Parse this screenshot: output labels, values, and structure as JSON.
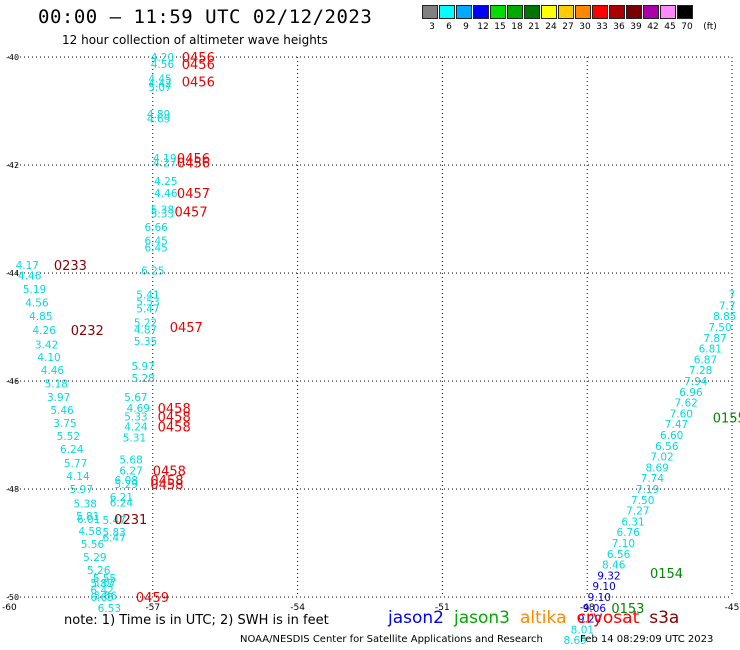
{
  "title": "00:00 – 11:59 UTC 02/12/2023",
  "subtitle": "12 hour collection of altimeter wave heights",
  "legend": {
    "unit": "(ft)",
    "swatches": [
      {
        "label": "3",
        "color": "#808080"
      },
      {
        "label": "6",
        "color": "#00ffff"
      },
      {
        "label": "9",
        "color": "#00aaff"
      },
      {
        "label": "12",
        "color": "#0000ff"
      },
      {
        "label": "15",
        "color": "#00dd00"
      },
      {
        "label": "18",
        "color": "#00aa00"
      },
      {
        "label": "21",
        "color": "#007700"
      },
      {
        "label": "24",
        "color": "#ffff00"
      },
      {
        "label": "27",
        "color": "#ffcc00"
      },
      {
        "label": "30",
        "color": "#ff8800"
      },
      {
        "label": "33",
        "color": "#ff0000"
      },
      {
        "label": "36",
        "color": "#aa0000"
      },
      {
        "label": "39",
        "color": "#770000"
      },
      {
        "label": "42",
        "color": "#aa00aa"
      },
      {
        "label": "45",
        "color": "#ff88ff"
      },
      {
        "label": "70",
        "color": "#000000"
      }
    ]
  },
  "note": "note: 1) Time is in UTC; 2) SWH is in feet",
  "satellites": [
    {
      "name": "jason2",
      "color": "#0000ff"
    },
    {
      "name": "jason3",
      "color": "#00aa00"
    },
    {
      "name": "altika",
      "color": "#ff8800"
    },
    {
      "name": "cryosat",
      "color": "#ff0000"
    },
    {
      "name": "s3a",
      "color": "#880000"
    }
  ],
  "credit": "NOAA/NESDIS Center for Satellite Applications and Research",
  "timestamp": "Feb 14 08:29:09 UTC 2023",
  "chart_data": {
    "type": "scatter",
    "title": "00:00 – 11:59 UTC 02/12/2023",
    "xlabel": "",
    "ylabel": "",
    "xlim": [
      -60,
      -45
    ],
    "ylim": [
      -50,
      -40
    ],
    "x_ticks": [
      "-57",
      "-54",
      "-51",
      "-48",
      "-45"
    ],
    "y_ticks": [
      "-40",
      "-42",
      "-44",
      "-46",
      "-48",
      "-50"
    ],
    "corner_tick": "-60",
    "grid": true,
    "wave_heights": [
      {
        "lon": -56.8,
        "lat": -40.0,
        "v": "4.20",
        "c": "#00dddd"
      },
      {
        "lon": -56.8,
        "lat": -40.13,
        "v": "4.56",
        "c": "#00dddd"
      },
      {
        "lon": -56.85,
        "lat": -40.4,
        "v": "4.45",
        "c": "#00dddd"
      },
      {
        "lon": -56.85,
        "lat": -40.48,
        "v": "4.42",
        "c": "#00dddd"
      },
      {
        "lon": -56.85,
        "lat": -40.56,
        "v": "5.07",
        "c": "#00dddd"
      },
      {
        "lon": -56.88,
        "lat": -41.06,
        "v": "4.89",
        "c": "#00dddd"
      },
      {
        "lon": -56.88,
        "lat": -41.14,
        "v": "4.69",
        "c": "#00dddd"
      },
      {
        "lon": -56.75,
        "lat": -41.87,
        "v": "4.19",
        "c": "#00dddd"
      },
      {
        "lon": -56.75,
        "lat": -41.95,
        "v": "4.27",
        "c": "#00dddd"
      },
      {
        "lon": -56.73,
        "lat": -42.3,
        "v": "4.25",
        "c": "#00dddd"
      },
      {
        "lon": -56.73,
        "lat": -42.52,
        "v": "4.46",
        "c": "#00dddd"
      },
      {
        "lon": -56.8,
        "lat": -42.82,
        "v": "5.38",
        "c": "#00dddd"
      },
      {
        "lon": -56.8,
        "lat": -42.9,
        "v": "5.33",
        "c": "#00dddd"
      },
      {
        "lon": -56.93,
        "lat": -43.15,
        "v": "6.66",
        "c": "#00dddd"
      },
      {
        "lon": -56.93,
        "lat": -43.4,
        "v": "6.45",
        "c": "#00dddd"
      },
      {
        "lon": -56.93,
        "lat": -43.53,
        "v": "6.45",
        "c": "#00dddd"
      },
      {
        "lon": -57.0,
        "lat": -43.95,
        "v": "6.25",
        "c": "#00dddd"
      },
      {
        "lon": -57.1,
        "lat": -44.4,
        "v": "5.41",
        "c": "#00dddd"
      },
      {
        "lon": -57.1,
        "lat": -44.53,
        "v": "5.53",
        "c": "#00dddd"
      },
      {
        "lon": -57.1,
        "lat": -44.66,
        "v": "5.47",
        "c": "#00dddd"
      },
      {
        "lon": -57.15,
        "lat": -44.92,
        "v": "5.22",
        "c": "#00dddd"
      },
      {
        "lon": -57.15,
        "lat": -45.05,
        "v": "4.87",
        "c": "#00dddd"
      },
      {
        "lon": -57.15,
        "lat": -45.26,
        "v": "5.35",
        "c": "#00dddd"
      },
      {
        "lon": -57.2,
        "lat": -45.72,
        "v": "5.97",
        "c": "#00dddd"
      },
      {
        "lon": -57.2,
        "lat": -45.94,
        "v": "5.28",
        "c": "#00dddd"
      },
      {
        "lon": -57.35,
        "lat": -46.3,
        "v": "5.67",
        "c": "#00dddd"
      },
      {
        "lon": -57.3,
        "lat": -46.5,
        "v": "4.69",
        "c": "#00dddd"
      },
      {
        "lon": -57.35,
        "lat": -46.66,
        "v": "5.33",
        "c": "#00dddd"
      },
      {
        "lon": -57.35,
        "lat": -46.84,
        "v": "4.24",
        "c": "#00dddd"
      },
      {
        "lon": -57.38,
        "lat": -47.05,
        "v": "5.31",
        "c": "#00dddd"
      },
      {
        "lon": -57.45,
        "lat": -47.45,
        "v": "5.68",
        "c": "#00dddd"
      },
      {
        "lon": -57.45,
        "lat": -47.66,
        "v": "6.27",
        "c": "#00dddd"
      },
      {
        "lon": -57.55,
        "lat": -47.83,
        "v": "6.08",
        "c": "#00dddd"
      },
      {
        "lon": -57.55,
        "lat": -47.91,
        "v": "5.29",
        "c": "#00dddd"
      },
      {
        "lon": -57.65,
        "lat": -48.15,
        "v": "6.21",
        "c": "#00dddd"
      },
      {
        "lon": -57.65,
        "lat": -48.25,
        "v": "6.24",
        "c": "#00dddd"
      },
      {
        "lon": -57.8,
        "lat": -48.57,
        "v": "5.47",
        "c": "#00dddd"
      },
      {
        "lon": -57.8,
        "lat": -48.8,
        "v": "5.83",
        "c": "#00dddd"
      },
      {
        "lon": -57.8,
        "lat": -48.9,
        "v": "6.47",
        "c": "#00dddd"
      },
      {
        "lon": -58.0,
        "lat": -49.65,
        "v": "5.55",
        "c": "#00dddd"
      },
      {
        "lon": -58.0,
        "lat": -49.73,
        "v": "5.07",
        "c": "#00dddd"
      },
      {
        "lon": -58.05,
        "lat": -49.87,
        "v": "6.42",
        "c": "#00dddd"
      },
      {
        "lon": -58.05,
        "lat": -50.0,
        "v": "6.65",
        "c": "#00dddd"
      },
      {
        "lon": -59.6,
        "lat": -43.85,
        "v": "4.17",
        "c": "#00dddd"
      },
      {
        "lon": -59.55,
        "lat": -44.05,
        "v": "4.46",
        "c": "#00dddd"
      },
      {
        "lon": -59.45,
        "lat": -44.3,
        "v": "5.19",
        "c": "#00dddd"
      },
      {
        "lon": -59.4,
        "lat": -44.55,
        "v": "4.56",
        "c": "#00dddd"
      },
      {
        "lon": -59.32,
        "lat": -44.8,
        "v": "4.85",
        "c": "#00dddd"
      },
      {
        "lon": -59.25,
        "lat": -45.06,
        "v": "4.26",
        "c": "#00dddd"
      },
      {
        "lon": -59.2,
        "lat": -45.32,
        "v": "3.42",
        "c": "#00dddd"
      },
      {
        "lon": -59.15,
        "lat": -45.56,
        "v": "4.10",
        "c": "#00dddd"
      },
      {
        "lon": -59.08,
        "lat": -45.8,
        "v": "4.46",
        "c": "#00dddd"
      },
      {
        "lon": -59.0,
        "lat": -46.05,
        "v": "5.18",
        "c": "#00dddd"
      },
      {
        "lon": -58.95,
        "lat": -46.3,
        "v": "3.97",
        "c": "#00dddd"
      },
      {
        "lon": -58.88,
        "lat": -46.54,
        "v": "5.46",
        "c": "#00dddd"
      },
      {
        "lon": -58.82,
        "lat": -46.78,
        "v": "3.75",
        "c": "#00dddd"
      },
      {
        "lon": -58.75,
        "lat": -47.02,
        "v": "5.52",
        "c": "#00dddd"
      },
      {
        "lon": -58.68,
        "lat": -47.26,
        "v": "6.24",
        "c": "#00dddd"
      },
      {
        "lon": -58.6,
        "lat": -47.52,
        "v": "5.77",
        "c": "#00dddd"
      },
      {
        "lon": -58.55,
        "lat": -47.76,
        "v": "4.14",
        "c": "#00dddd"
      },
      {
        "lon": -58.48,
        "lat": -48.0,
        "v": "5.97",
        "c": "#00dddd"
      },
      {
        "lon": -58.4,
        "lat": -48.27,
        "v": "5.38",
        "c": "#00dddd"
      },
      {
        "lon": -58.35,
        "lat": -48.5,
        "v": "5.81",
        "c": "#00dddd"
      },
      {
        "lon": -58.33,
        "lat": -48.56,
        "v": "6.01",
        "c": "#00dddd"
      },
      {
        "lon": -58.3,
        "lat": -48.78,
        "v": "4.58",
        "c": "#00dddd"
      },
      {
        "lon": -58.25,
        "lat": -49.02,
        "v": "5.56",
        "c": "#00dddd"
      },
      {
        "lon": -58.2,
        "lat": -49.26,
        "v": "5.29",
        "c": "#00dddd"
      },
      {
        "lon": -58.12,
        "lat": -49.5,
        "v": "5.26",
        "c": "#00dddd"
      },
      {
        "lon": -58.05,
        "lat": -49.74,
        "v": "5.87",
        "c": "#00dddd"
      },
      {
        "lon": -57.98,
        "lat": -49.97,
        "v": "5.66",
        "c": "#00dddd"
      },
      {
        "lon": -57.9,
        "lat": -50.2,
        "v": "6.53",
        "c": "#00dddd"
      },
      {
        "lon": -45.0,
        "lat": -44.4,
        "v": "7",
        "c": "#00dddd"
      },
      {
        "lon": -45.1,
        "lat": -44.6,
        "v": "7.7",
        "c": "#00dddd"
      },
      {
        "lon": -45.15,
        "lat": -44.8,
        "v": "8.85",
        "c": "#00dddd"
      },
      {
        "lon": -45.25,
        "lat": -45.0,
        "v": "7.50",
        "c": "#00dddd"
      },
      {
        "lon": -45.35,
        "lat": -45.2,
        "v": "7.87",
        "c": "#00dddd"
      },
      {
        "lon": -45.45,
        "lat": -45.4,
        "v": "6.81",
        "c": "#00dddd"
      },
      {
        "lon": -45.55,
        "lat": -45.6,
        "v": "6.87",
        "c": "#00dddd"
      },
      {
        "lon": -45.65,
        "lat": -45.8,
        "v": "7.28",
        "c": "#00dddd"
      },
      {
        "lon": -45.75,
        "lat": -46.0,
        "v": "7.94",
        "c": "#00dddd"
      },
      {
        "lon": -45.85,
        "lat": -46.2,
        "v": "6.96",
        "c": "#00dddd"
      },
      {
        "lon": -45.95,
        "lat": -46.4,
        "v": "7.62",
        "c": "#00dddd"
      },
      {
        "lon": -46.05,
        "lat": -46.6,
        "v": "7.60",
        "c": "#00dddd"
      },
      {
        "lon": -46.15,
        "lat": -46.8,
        "v": "7.47",
        "c": "#00dddd"
      },
      {
        "lon": -46.25,
        "lat": -47.0,
        "v": "6.60",
        "c": "#00dddd"
      },
      {
        "lon": -46.35,
        "lat": -47.2,
        "v": "6.56",
        "c": "#00dddd"
      },
      {
        "lon": -46.45,
        "lat": -47.4,
        "v": "7.02",
        "c": "#00dddd"
      },
      {
        "lon": -46.55,
        "lat": -47.6,
        "v": "8.69",
        "c": "#00dddd"
      },
      {
        "lon": -46.65,
        "lat": -47.8,
        "v": "7.74",
        "c": "#00dddd"
      },
      {
        "lon": -46.75,
        "lat": -48.0,
        "v": "7.19",
        "c": "#00dddd"
      },
      {
        "lon": -46.85,
        "lat": -48.2,
        "v": "7.50",
        "c": "#00dddd"
      },
      {
        "lon": -46.95,
        "lat": -48.4,
        "v": "7.27",
        "c": "#00dddd"
      },
      {
        "lon": -47.05,
        "lat": -48.6,
        "v": "6.31",
        "c": "#00dddd"
      },
      {
        "lon": -47.15,
        "lat": -48.8,
        "v": "6.76",
        "c": "#00dddd"
      },
      {
        "lon": -47.25,
        "lat": -49.0,
        "v": "7.10",
        "c": "#00dddd"
      },
      {
        "lon": -47.35,
        "lat": -49.2,
        "v": "6.56",
        "c": "#00dddd"
      },
      {
        "lon": -47.45,
        "lat": -49.4,
        "v": "8.46",
        "c": "#00dddd"
      },
      {
        "lon": -47.55,
        "lat": -49.6,
        "v": "9.32",
        "c": "#0000ee"
      },
      {
        "lon": -47.65,
        "lat": -49.8,
        "v": "9.10",
        "c": "#0000ee"
      },
      {
        "lon": -47.75,
        "lat": -50.0,
        "v": "9.10",
        "c": "#0000ee"
      },
      {
        "lon": -47.85,
        "lat": -50.2,
        "v": "9.06",
        "c": "#0000ee"
      },
      {
        "lon": -47.95,
        "lat": -50.4,
        "v": "9.20",
        "c": "#0000ee"
      },
      {
        "lon": -48.1,
        "lat": -50.6,
        "v": "8.01",
        "c": "#00dddd"
      },
      {
        "lon": -48.25,
        "lat": -50.8,
        "v": "8.69",
        "c": "#00dddd"
      }
    ],
    "pass_times": [
      {
        "lon": -56.4,
        "lat": -40.0,
        "t": "0456",
        "c": "#ee0000"
      },
      {
        "lon": -56.4,
        "lat": -40.13,
        "t": "0456",
        "c": "#ee0000"
      },
      {
        "lon": -56.4,
        "lat": -40.45,
        "t": "0456",
        "c": "#ee0000"
      },
      {
        "lon": -56.5,
        "lat": -41.87,
        "t": "0456",
        "c": "#ee0000"
      },
      {
        "lon": -56.5,
        "lat": -41.95,
        "t": "0456",
        "c": "#ee0000"
      },
      {
        "lon": -56.5,
        "lat": -42.52,
        "t": "0457",
        "c": "#ee0000"
      },
      {
        "lon": -56.55,
        "lat": -42.86,
        "t": "0457",
        "c": "#ee0000"
      },
      {
        "lon": -56.65,
        "lat": -45.0,
        "t": "0457",
        "c": "#ee0000"
      },
      {
        "lon": -56.9,
        "lat": -46.5,
        "t": "0458",
        "c": "#ee0000"
      },
      {
        "lon": -56.9,
        "lat": -46.66,
        "t": "0458",
        "c": "#ee0000"
      },
      {
        "lon": -56.9,
        "lat": -46.84,
        "t": "0458",
        "c": "#ee0000"
      },
      {
        "lon": -57.0,
        "lat": -47.66,
        "t": "0458",
        "c": "#ee0000"
      },
      {
        "lon": -57.05,
        "lat": -47.83,
        "t": "0458",
        "c": "#ee0000"
      },
      {
        "lon": -57.05,
        "lat": -47.91,
        "t": "0458",
        "c": "#ee0000"
      },
      {
        "lon": -57.35,
        "lat": -50.0,
        "t": "0459",
        "c": "#ee0000"
      },
      {
        "lon": -59.05,
        "lat": -43.85,
        "t": "0233",
        "c": "#880000"
      },
      {
        "lon": -58.7,
        "lat": -45.06,
        "t": "0232",
        "c": "#880000"
      },
      {
        "lon": -57.8,
        "lat": -48.56,
        "t": "0231",
        "c": "#880000"
      },
      {
        "lon": -45.4,
        "lat": -46.68,
        "t": "0155",
        "c": "#008800"
      },
      {
        "lon": -46.7,
        "lat": -49.56,
        "t": "0154",
        "c": "#008800"
      },
      {
        "lon": -47.5,
        "lat": -50.2,
        "t": "0153",
        "c": "#008800"
      }
    ]
  }
}
